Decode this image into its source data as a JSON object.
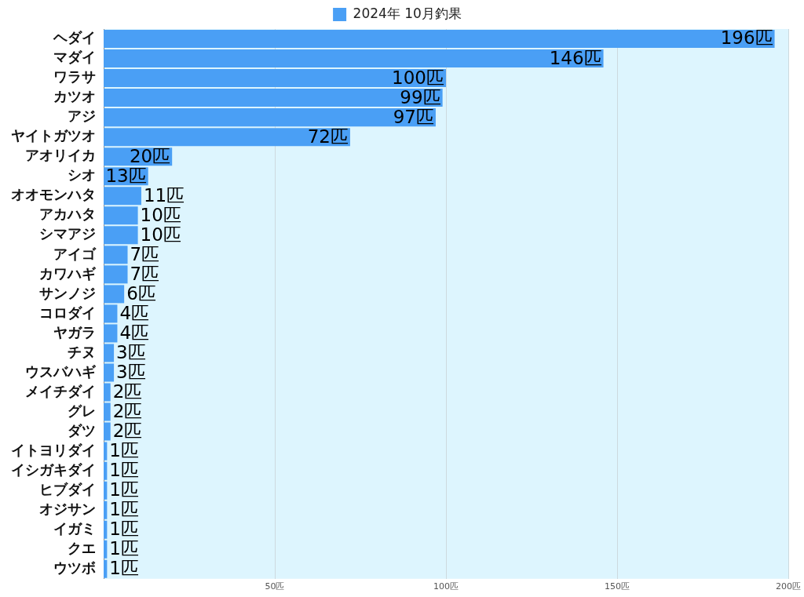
{
  "chart_data": {
    "type": "bar",
    "orientation": "horizontal",
    "categories": [
      "ヘダイ",
      "マダイ",
      "ワラサ",
      "カツオ",
      "アジ",
      "ヤイトガツオ",
      "アオリイカ",
      "シオ",
      "オオモンハタ",
      "アカハタ",
      "シマアジ",
      "アイゴ",
      "カワハギ",
      "サンノジ",
      "コロダイ",
      "ヤガラ",
      "チヌ",
      "ウスバハギ",
      "メイチダイ",
      "グレ",
      "ダツ",
      "イトヨリダイ",
      "イシガキダイ",
      "ヒブダイ",
      "オジサン",
      "イガミ",
      "クエ",
      "ウツボ"
    ],
    "series": [
      {
        "name": "2024年 10月釣果",
        "color": "#4a9ff5",
        "values": [
          196,
          146,
          100,
          99,
          97,
          72,
          20,
          13,
          11,
          10,
          10,
          7,
          7,
          6,
          4,
          4,
          3,
          3,
          2,
          2,
          2,
          1,
          1,
          1,
          1,
          1,
          1,
          1
        ],
        "value_labels": [
          "196匹",
          "146匹",
          "100匹",
          "99匹",
          "97匹",
          "72匹",
          "20匹",
          "13匹",
          "11匹",
          "10匹",
          "10匹",
          "7匹",
          "7匹",
          "6匹",
          "4匹",
          "4匹",
          "3匹",
          "3匹",
          "2匹",
          "2匹",
          "2匹",
          "1匹",
          "1匹",
          "1匹",
          "1匹",
          "1匹",
          "1匹",
          "1匹"
        ]
      }
    ],
    "xlim": [
      0,
      200
    ],
    "xticks": [
      {
        "value": 50,
        "label": "50匹"
      },
      {
        "value": 100,
        "label": "100匹"
      },
      {
        "value": 150,
        "label": "150匹"
      },
      {
        "value": 200,
        "label": "200匹"
      }
    ],
    "grid": "x",
    "legend": "top"
  }
}
